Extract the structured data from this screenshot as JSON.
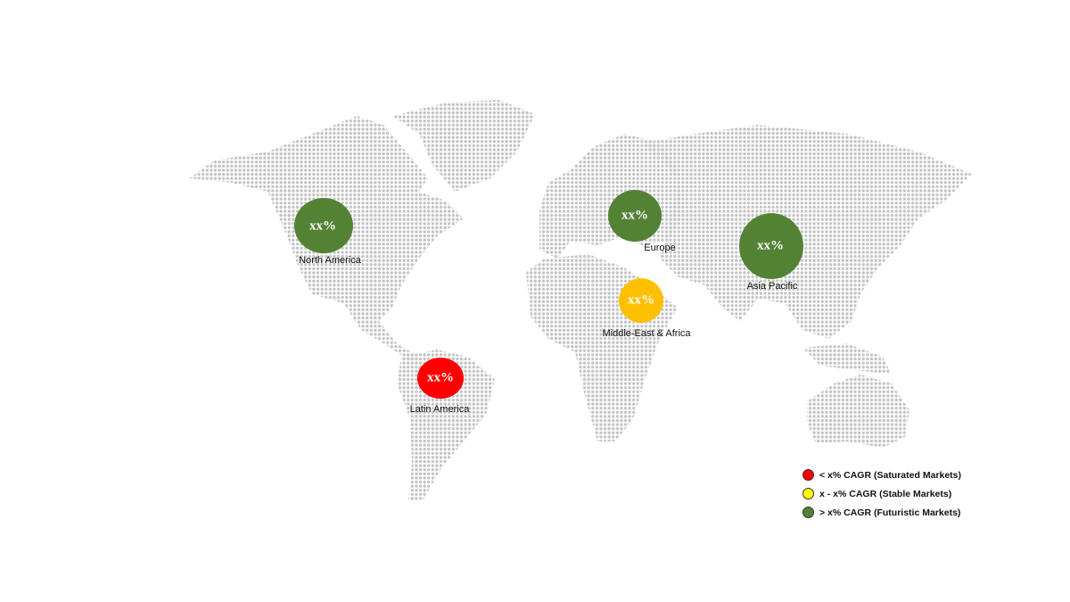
{
  "colors": {
    "futuristic": "#548235",
    "stable": "#ffc000",
    "saturated": "#ff0000",
    "legend_stable": "#ffff00",
    "map_dots": "#c4c4c4"
  },
  "regions": [
    {
      "name": "North America",
      "value": "xx%",
      "category": "futuristic"
    },
    {
      "name": "Europe",
      "value": "xx%",
      "category": "futuristic"
    },
    {
      "name": "Asia Pacific",
      "value": "xx%",
      "category": "futuristic"
    },
    {
      "name": "Middle-East & Africa",
      "value": "xx%",
      "category": "stable"
    },
    {
      "name": "Latin America",
      "value": "xx%",
      "category": "saturated"
    }
  ],
  "legend": [
    {
      "label": "< x% CAGR (Saturated Markets)",
      "category": "saturated"
    },
    {
      "label": "x - x% CAGR (Stable Markets)",
      "category": "stable"
    },
    {
      "label": "> x% CAGR (Futuristic Markets)",
      "category": "futuristic"
    }
  ]
}
